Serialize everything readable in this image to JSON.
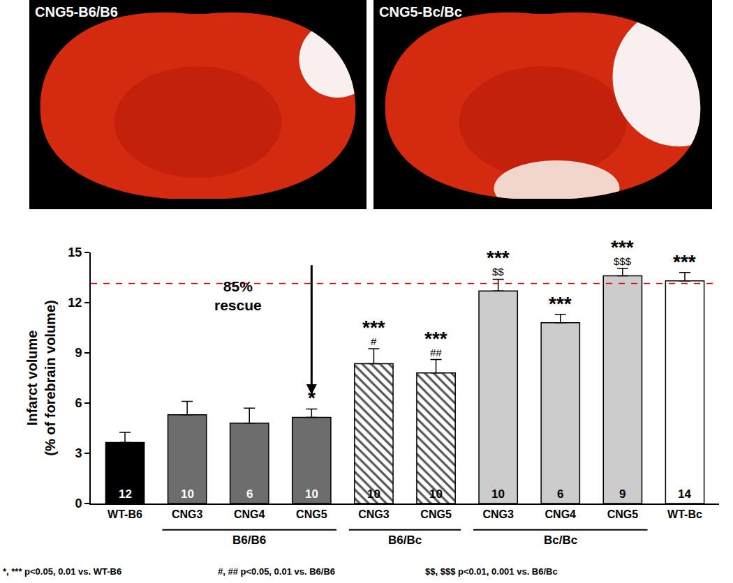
{
  "panels": [
    {
      "label": "CNG5-B6/B6"
    },
    {
      "label": "CNG5-Bc/Bc"
    }
  ],
  "chart_data": {
    "type": "bar",
    "categories": [
      "WT-B6",
      "CNG3",
      "CNG4",
      "CNG5",
      "CNG3",
      "CNG5",
      "CNG3",
      "CNG4",
      "CNG5",
      "WT-Bc"
    ],
    "series": [
      {
        "color": "#000000",
        "marker": "solid",
        "values": [
          3.65,
          null,
          null,
          null,
          null,
          null,
          null,
          null,
          null,
          null
        ],
        "errors": [
          0.6,
          null,
          null,
          null,
          null,
          null,
          null,
          null,
          null,
          null
        ]
      },
      {
        "color": "#6d6d6d",
        "marker": "solid",
        "values": [
          null,
          5.3,
          4.8,
          5.15,
          null,
          null,
          null,
          null,
          null,
          null
        ],
        "errors": [
          null,
          0.8,
          0.9,
          0.5,
          null,
          null,
          null,
          null,
          null,
          null
        ]
      },
      {
        "color": "#555555",
        "marker": "hatched",
        "values": [
          null,
          null,
          null,
          null,
          8.35,
          7.8,
          null,
          null,
          null,
          null
        ],
        "errors": [
          null,
          null,
          null,
          null,
          0.9,
          0.8,
          null,
          null,
          null,
          null
        ]
      },
      {
        "color": "#cccccc",
        "marker": "solid",
        "values": [
          null,
          null,
          null,
          null,
          null,
          null,
          12.7,
          10.8,
          13.6,
          null
        ],
        "errors": [
          null,
          null,
          null,
          null,
          null,
          null,
          0.7,
          0.5,
          0.45,
          null
        ]
      },
      {
        "color": "#ffffff",
        "marker": "solid",
        "values": [
          null,
          null,
          null,
          null,
          null,
          null,
          null,
          null,
          null,
          13.3
        ],
        "errors": [
          null,
          null,
          null,
          null,
          null,
          null,
          null,
          null,
          null,
          0.5
        ]
      }
    ],
    "y_label": [
      "Infarct volume",
      "(% of forebrain volume)"
    ],
    "ylim": [
      0,
      15
    ],
    "yticks": [
      0,
      3,
      6,
      9,
      12,
      15
    ],
    "grid": false,
    "n": [
      12,
      10,
      6,
      10,
      10,
      10,
      10,
      6,
      9,
      14
    ],
    "significance": [
      null,
      null,
      null,
      "*",
      "***",
      "***",
      "***",
      "***",
      "***",
      "***"
    ],
    "comparisons": [
      null,
      null,
      null,
      null,
      "#",
      "##",
      "$$",
      null,
      "$$$",
      null
    ],
    "groups": [
      {
        "label": "B6/B6",
        "from": 1,
        "to": 3
      },
      {
        "label": "B6/Bc",
        "from": 4,
        "to": 5
      },
      {
        "label": "Bc/Bc",
        "from": 6,
        "to": 8
      }
    ],
    "reference_line": {
      "value": 13.15,
      "color": "#ff0000",
      "line_style": "dashed"
    },
    "annotation": {
      "lines": [
        "85%",
        "rescue"
      ],
      "category": 3,
      "arrow_from": 14.3,
      "arrow_to": 6.5
    },
    "footnotes": [
      "*, *** p<0.05, 0.01 vs. WT-B6",
      "#, ## p<0.05, 0.01 vs. B6/B6",
      "$$, $$$ p<0.01, 0.001 vs. B6/Bc"
    ]
  }
}
